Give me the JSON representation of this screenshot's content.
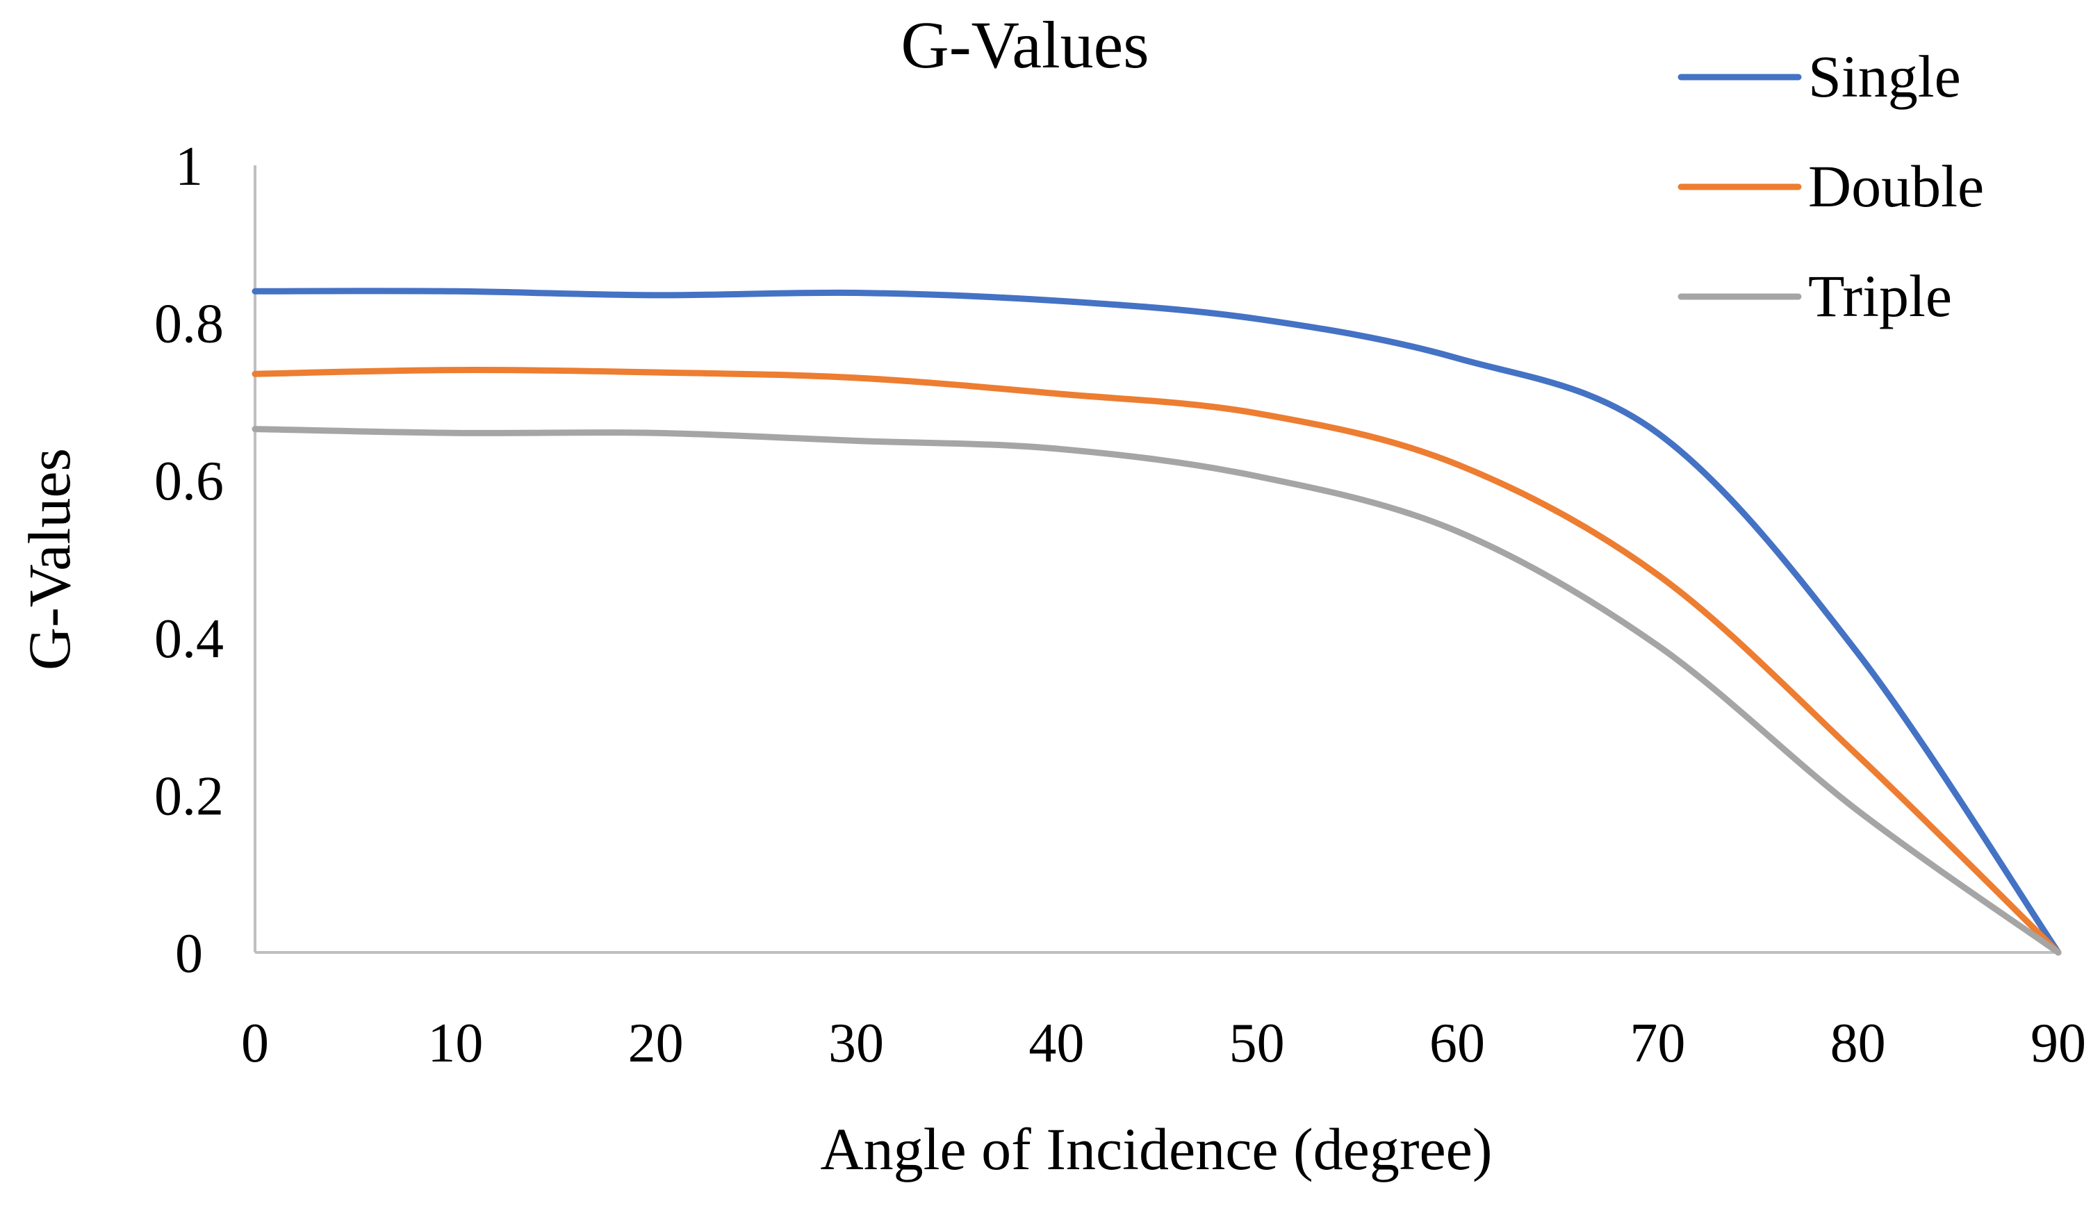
{
  "chart_data": {
    "type": "line",
    "title": "G-Values",
    "xlabel": "Angle of Incidence (degree)",
    "ylabel": "G-Values",
    "xlim": [
      0,
      90
    ],
    "ylim": [
      0,
      1
    ],
    "x_ticks": [
      0,
      10,
      20,
      30,
      40,
      50,
      60,
      70,
      80,
      90
    ],
    "y_ticks": [
      0,
      0.2,
      0.4,
      0.6,
      0.8,
      1
    ],
    "y_tick_labels": [
      "0",
      "0.2",
      "0.4",
      "0.6",
      "0.8",
      "1"
    ],
    "grid": false,
    "legend_position": "top-right",
    "x": [
      0,
      10,
      20,
      30,
      40,
      50,
      60,
      70,
      80,
      90
    ],
    "series": [
      {
        "name": "Single",
        "color": "#4472C4",
        "values": [
          0.84,
          0.84,
          0.835,
          0.838,
          0.828,
          0.805,
          0.755,
          0.66,
          0.38,
          0.0
        ]
      },
      {
        "name": "Double",
        "color": "#ED7D31",
        "values": [
          0.735,
          0.74,
          0.737,
          0.73,
          0.71,
          0.685,
          0.62,
          0.48,
          0.25,
          0.0
        ]
      },
      {
        "name": "Triple",
        "color": "#A5A5A5",
        "values": [
          0.665,
          0.66,
          0.66,
          0.65,
          0.64,
          0.605,
          0.535,
          0.39,
          0.18,
          0.0
        ]
      }
    ]
  }
}
